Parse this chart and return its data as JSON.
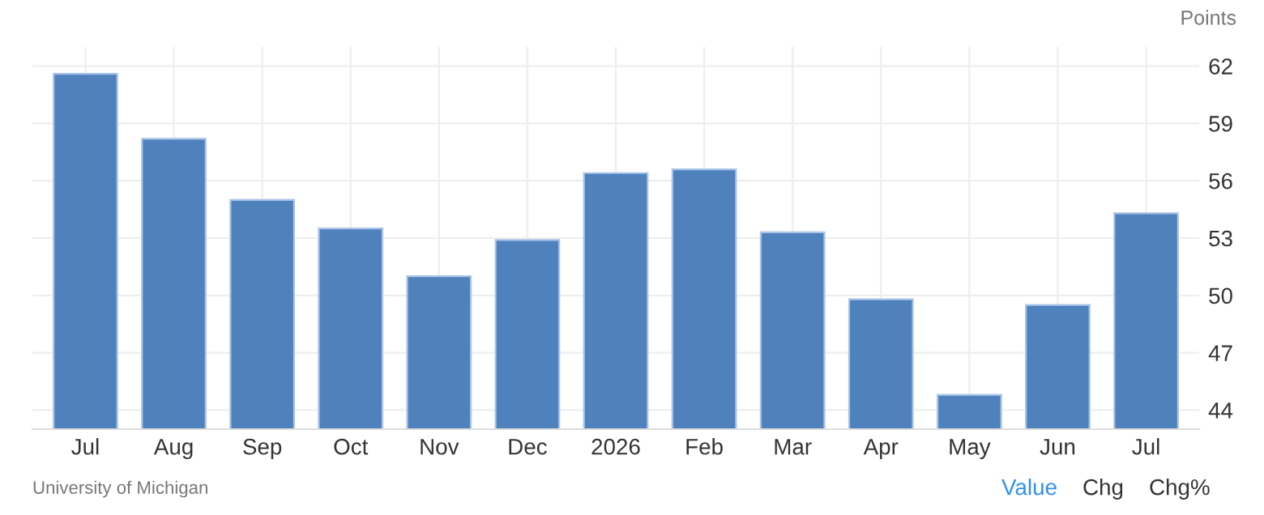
{
  "chart_data": {
    "type": "bar",
    "ylabel": "Points",
    "categories": [
      "Jul",
      "Aug",
      "Sep",
      "Oct",
      "Nov",
      "Dec",
      "2026",
      "Feb",
      "Mar",
      "Apr",
      "May",
      "Jun",
      "Jul"
    ],
    "values": [
      61.6,
      58.2,
      55.0,
      53.5,
      51.0,
      52.9,
      56.4,
      56.6,
      53.3,
      49.8,
      44.8,
      49.5,
      54.3
    ],
    "color": "#4f81bd",
    "ylim": [
      43,
      63
    ],
    "yticks": [
      44,
      47,
      50,
      53,
      56,
      59,
      62
    ],
    "grid": true,
    "annotations": [
      "University of Michigan",
      "Value",
      "Chg",
      "Chg%"
    ]
  }
}
